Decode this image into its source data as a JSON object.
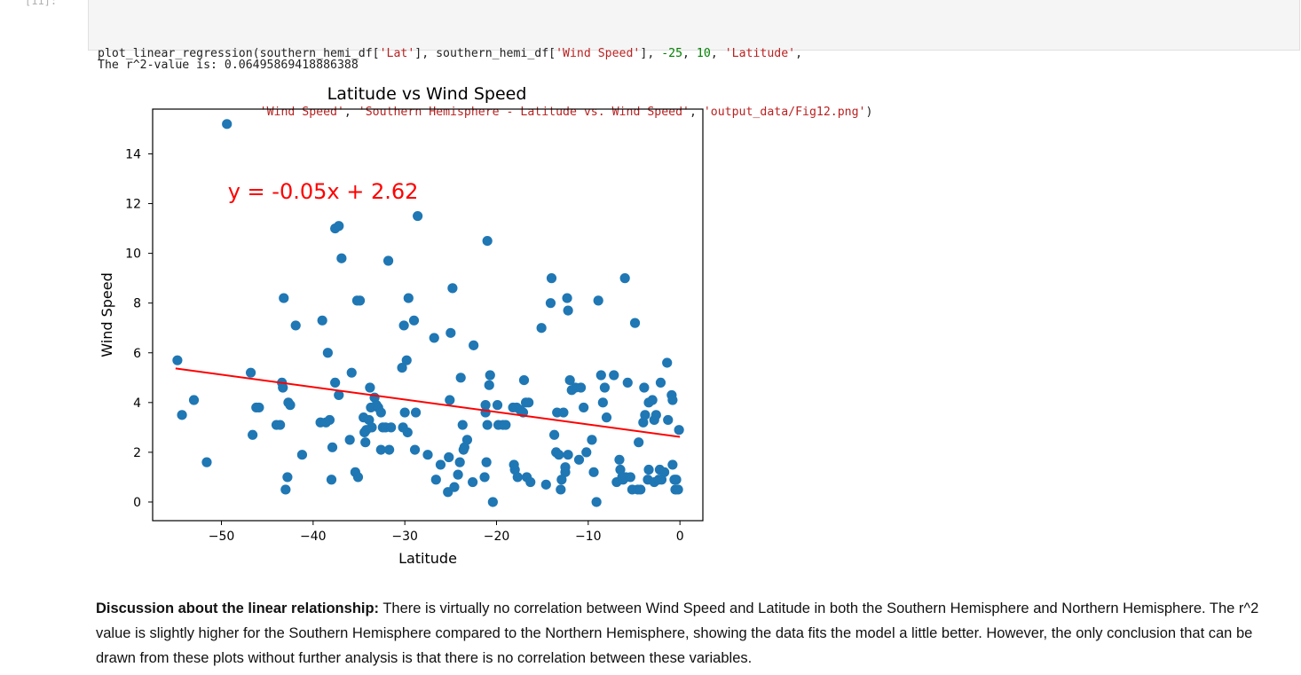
{
  "prompt_label": "[11]:",
  "code_cell": {
    "line1": [
      {
        "t": "op",
        "v": "plot_linear_regression(southern_hemi_df["
      },
      {
        "t": "str",
        "v": "'Lat'"
      },
      {
        "t": "op",
        "v": "], southern_hemi_df["
      },
      {
        "t": "str",
        "v": "'Wind Speed'"
      },
      {
        "t": "op",
        "v": "], "
      },
      {
        "t": "num",
        "v": "-25"
      },
      {
        "t": "op",
        "v": ", "
      },
      {
        "t": "num",
        "v": "10"
      },
      {
        "t": "op",
        "v": ", "
      },
      {
        "t": "str",
        "v": "'Latitude'"
      },
      {
        "t": "op",
        "v": ","
      }
    ],
    "line2_indent": "                       ",
    "line2": [
      {
        "t": "str",
        "v": "'Wind Speed'"
      },
      {
        "t": "op",
        "v": ", "
      },
      {
        "t": "str",
        "v": "'Southern Hemisphere - Latitude vs. Wind Speed'"
      },
      {
        "t": "op",
        "v": ", "
      },
      {
        "t": "str",
        "v": "'output_data/Fig12.png'"
      },
      {
        "t": "op",
        "v": ")"
      }
    ]
  },
  "output_text": "The r^2-value is: 0.06495869418886388",
  "chart_data": {
    "type": "scatter",
    "title": "Latitude vs Wind Speed",
    "xlabel": "Latitude",
    "ylabel": "Wind Speed",
    "xlim": [
      -57.5,
      2.5
    ],
    "ylim": [
      -0.75,
      15.8
    ],
    "xticks": [
      -50,
      -40,
      -30,
      -20,
      -10,
      0
    ],
    "xtick_labels": [
      "−50",
      "−40",
      "−30",
      "−20",
      "−10",
      "0"
    ],
    "yticks": [
      0,
      2,
      4,
      6,
      8,
      10,
      12,
      14
    ],
    "ytick_labels": [
      "0",
      "2",
      "4",
      "6",
      "8",
      "10",
      "12",
      "14"
    ],
    "point_color": "#1f77b4",
    "line_color": "#ff0000",
    "annotation": {
      "text": "y = -0.05x + 2.62",
      "x": -49.3,
      "y": 12.2,
      "color": "#ff0000"
    },
    "regression_line": {
      "slope": -0.05,
      "intercept": 2.62,
      "x_start": -55,
      "x_end": 0
    },
    "points": [
      [
        -54.8,
        5.7
      ],
      [
        -54.3,
        3.5
      ],
      [
        -53.0,
        4.1
      ],
      [
        -51.6,
        1.6
      ],
      [
        -49.4,
        15.2
      ],
      [
        -46.8,
        5.2
      ],
      [
        -46.6,
        2.7
      ],
      [
        -46.2,
        3.8
      ],
      [
        -45.9,
        3.8
      ],
      [
        -44.0,
        3.1
      ],
      [
        -43.6,
        3.1
      ],
      [
        -43.4,
        4.8
      ],
      [
        -43.3,
        4.6
      ],
      [
        -43.2,
        8.2
      ],
      [
        -43.0,
        0.5
      ],
      [
        -42.8,
        1.0
      ],
      [
        -42.7,
        4.0
      ],
      [
        -42.5,
        3.9
      ],
      [
        -41.9,
        7.1
      ],
      [
        -41.2,
        1.9
      ],
      [
        -39.2,
        3.2
      ],
      [
        -39.0,
        7.3
      ],
      [
        -38.6,
        3.2
      ],
      [
        -38.4,
        6.0
      ],
      [
        -38.2,
        3.3
      ],
      [
        -38.0,
        0.9
      ],
      [
        -37.9,
        2.2
      ],
      [
        -37.6,
        11.0
      ],
      [
        -37.6,
        4.8
      ],
      [
        -37.2,
        11.1
      ],
      [
        -37.2,
        4.3
      ],
      [
        -36.9,
        9.8
      ],
      [
        -36.0,
        2.5
      ],
      [
        -35.8,
        5.2
      ],
      [
        -35.4,
        1.2
      ],
      [
        -35.2,
        8.1
      ],
      [
        -35.1,
        1.0
      ],
      [
        -34.9,
        8.1
      ],
      [
        -34.5,
        3.4
      ],
      [
        -34.4,
        2.8
      ],
      [
        -34.3,
        2.4
      ],
      [
        -34.2,
        2.9
      ],
      [
        -33.9,
        3.3
      ],
      [
        -33.8,
        4.6
      ],
      [
        -33.7,
        3.8
      ],
      [
        -33.6,
        3.0
      ],
      [
        -33.3,
        4.2
      ],
      [
        -33.1,
        3.9
      ],
      [
        -32.9,
        3.8
      ],
      [
        -32.6,
        3.6
      ],
      [
        -32.6,
        2.1
      ],
      [
        -32.4,
        3.0
      ],
      [
        -32.1,
        3.0
      ],
      [
        -31.8,
        9.7
      ],
      [
        -31.7,
        2.1
      ],
      [
        -31.5,
        3.0
      ],
      [
        -30.3,
        5.4
      ],
      [
        -30.2,
        3.0
      ],
      [
        -30.1,
        7.1
      ],
      [
        -30.0,
        3.6
      ],
      [
        -29.8,
        5.7
      ],
      [
        -29.7,
        2.8
      ],
      [
        -29.6,
        8.2
      ],
      [
        -29.0,
        7.3
      ],
      [
        -28.9,
        2.1
      ],
      [
        -28.8,
        3.6
      ],
      [
        -28.6,
        11.5
      ],
      [
        -27.5,
        1.9
      ],
      [
        -26.8,
        6.6
      ],
      [
        -26.6,
        0.9
      ],
      [
        -26.1,
        1.5
      ],
      [
        -25.3,
        0.4
      ],
      [
        -25.2,
        1.8
      ],
      [
        -25.1,
        4.1
      ],
      [
        -25.0,
        6.8
      ],
      [
        -24.8,
        8.6
      ],
      [
        -24.6,
        0.6
      ],
      [
        -24.2,
        1.1
      ],
      [
        -24.0,
        1.6
      ],
      [
        -23.9,
        5.0
      ],
      [
        -23.7,
        3.1
      ],
      [
        -23.6,
        2.1
      ],
      [
        -23.5,
        2.2
      ],
      [
        -23.2,
        2.5
      ],
      [
        -22.6,
        0.8
      ],
      [
        -22.5,
        6.3
      ],
      [
        -21.3,
        1.0
      ],
      [
        -21.2,
        3.9
      ],
      [
        -21.2,
        3.6
      ],
      [
        -21.1,
        1.6
      ],
      [
        -21.0,
        10.5
      ],
      [
        -21.0,
        3.1
      ],
      [
        -20.8,
        4.7
      ],
      [
        -20.7,
        5.1
      ],
      [
        -20.4,
        0.0
      ],
      [
        -19.9,
        3.9
      ],
      [
        -19.8,
        3.1
      ],
      [
        -19.3,
        3.1
      ],
      [
        -19.0,
        3.1
      ],
      [
        -18.2,
        3.8
      ],
      [
        -18.1,
        1.5
      ],
      [
        -18.0,
        1.3
      ],
      [
        -17.8,
        3.8
      ],
      [
        -17.7,
        1.0
      ],
      [
        -17.4,
        3.7
      ],
      [
        -17.1,
        3.6
      ],
      [
        -17.0,
        4.9
      ],
      [
        -16.8,
        4.0
      ],
      [
        -16.7,
        1.0
      ],
      [
        -16.5,
        4.0
      ],
      [
        -16.3,
        0.8
      ],
      [
        -15.1,
        7.0
      ],
      [
        -14.6,
        0.7
      ],
      [
        -14.1,
        8.0
      ],
      [
        -14.0,
        9.0
      ],
      [
        -13.7,
        2.7
      ],
      [
        -13.5,
        2.0
      ],
      [
        -13.4,
        3.6
      ],
      [
        -13.2,
        1.9
      ],
      [
        -13.0,
        0.5
      ],
      [
        -12.9,
        0.9
      ],
      [
        -12.7,
        3.6
      ],
      [
        -12.5,
        1.4
      ],
      [
        -12.5,
        1.2
      ],
      [
        -12.3,
        8.2
      ],
      [
        -12.2,
        7.7
      ],
      [
        -12.2,
        1.9
      ],
      [
        -12.0,
        4.9
      ],
      [
        -11.8,
        4.5
      ],
      [
        -11.4,
        4.6
      ],
      [
        -11.0,
        1.7
      ],
      [
        -10.8,
        4.6
      ],
      [
        -10.5,
        3.8
      ],
      [
        -10.2,
        2.0
      ],
      [
        -9.6,
        2.5
      ],
      [
        -9.4,
        1.2
      ],
      [
        -9.1,
        0.0
      ],
      [
        -8.9,
        8.1
      ],
      [
        -8.6,
        5.1
      ],
      [
        -8.4,
        4.0
      ],
      [
        -8.2,
        4.6
      ],
      [
        -8.0,
        3.4
      ],
      [
        -7.2,
        5.1
      ],
      [
        -6.9,
        0.8
      ],
      [
        -6.6,
        1.7
      ],
      [
        -6.5,
        1.3
      ],
      [
        -6.3,
        1.0
      ],
      [
        -6.2,
        0.9
      ],
      [
        -6.0,
        9.0
      ],
      [
        -5.9,
        1.0
      ],
      [
        -5.7,
        4.8
      ],
      [
        -5.4,
        1.0
      ],
      [
        -5.2,
        0.5
      ],
      [
        -4.9,
        7.2
      ],
      [
        -4.6,
        0.5
      ],
      [
        -4.5,
        2.4
      ],
      [
        -4.3,
        0.5
      ],
      [
        -4.0,
        3.2
      ],
      [
        -3.9,
        4.6
      ],
      [
        -3.8,
        3.5
      ],
      [
        -3.5,
        0.9
      ],
      [
        -3.4,
        4.0
      ],
      [
        -3.4,
        1.3
      ],
      [
        -3.0,
        4.1
      ],
      [
        -2.8,
        0.8
      ],
      [
        -2.8,
        3.3
      ],
      [
        -2.6,
        3.5
      ],
      [
        -2.3,
        0.9
      ],
      [
        -2.2,
        1.3
      ],
      [
        -2.1,
        4.8
      ],
      [
        -2.0,
        0.9
      ],
      [
        -1.7,
        1.2
      ],
      [
        -1.4,
        5.6
      ],
      [
        -1.3,
        3.3
      ],
      [
        -0.9,
        4.3
      ],
      [
        -0.8,
        4.1
      ],
      [
        -0.8,
        1.5
      ],
      [
        -0.6,
        0.9
      ],
      [
        -0.5,
        0.5
      ],
      [
        -0.4,
        0.9
      ],
      [
        -0.2,
        0.5
      ],
      [
        -0.1,
        2.9
      ]
    ]
  },
  "discussion": {
    "heading": "Discussion about the linear relationship:",
    "body": " There is virtually no correlation between Wind Speed and Latitude in both the Southern Hemisphere and Northern Hemisphere. The r^2 value is slightly higher for the Southern Hemisphere compared to the Northern Hemisphere, showing the data fits the model a little better. However, the only conclusion that can be drawn from these plots without further analysis is that there is no correlation between these variables."
  }
}
